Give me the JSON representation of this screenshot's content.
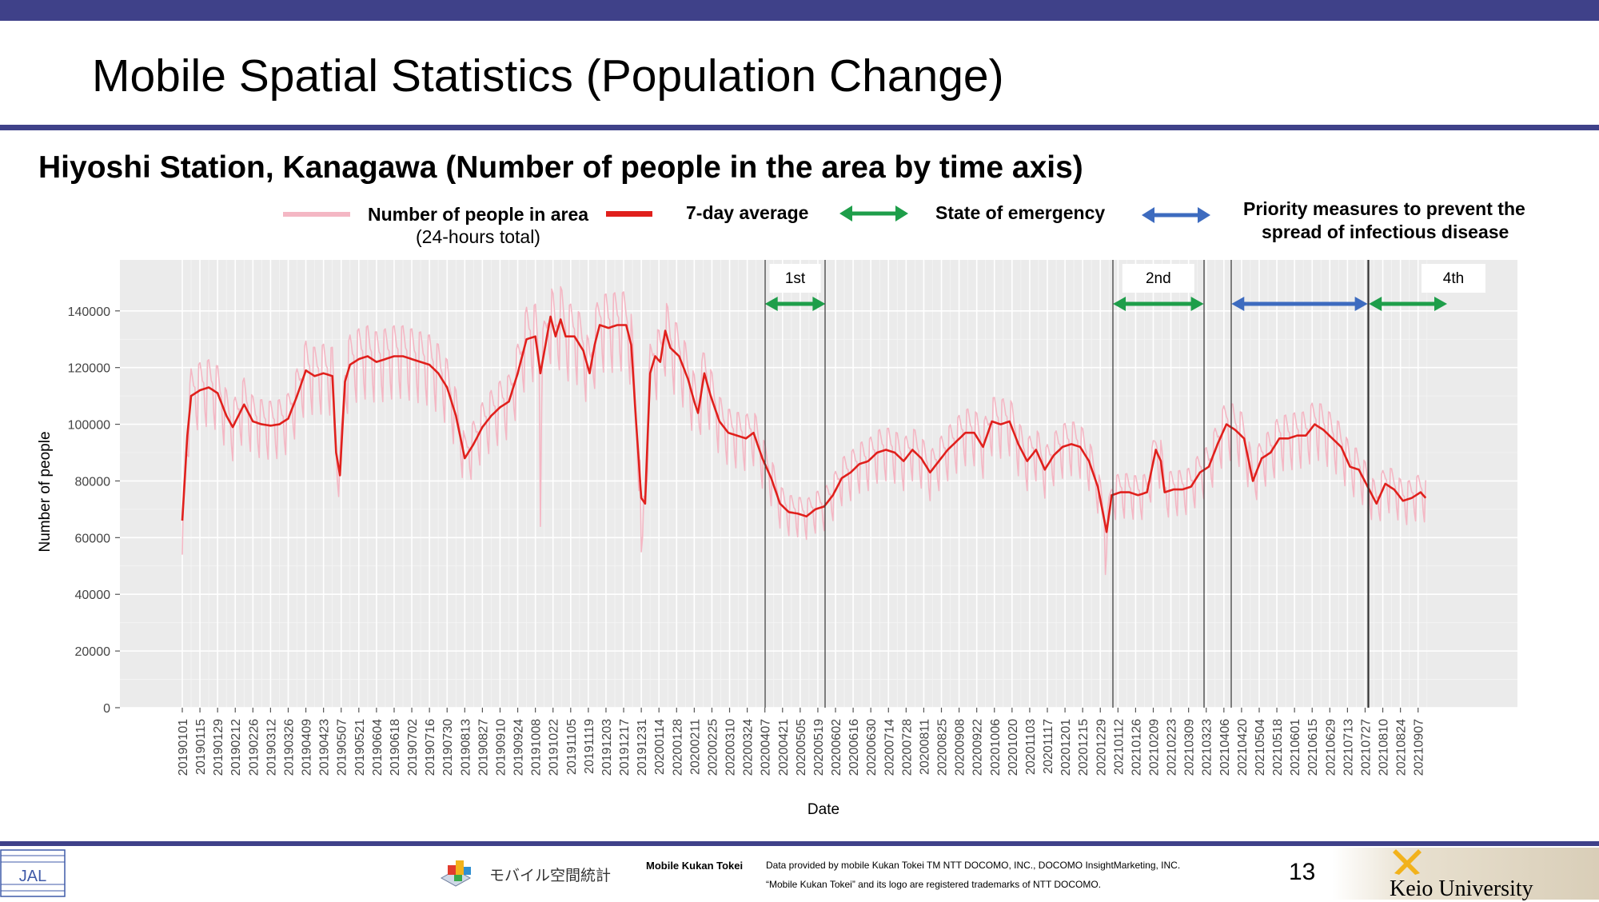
{
  "slide": {
    "title": "Mobile Spatial Statistics (Population Change)",
    "subtitle": "Hiyoshi Station, Kanagawa (Number of people in the area by time axis)",
    "page_number": "13"
  },
  "legend": {
    "daily_label": "Number of people in area",
    "daily_sublabel": "(24-hours total)",
    "daily_color": "#f4b7c4",
    "avg_label": "7-day average",
    "avg_color": "#e0201c",
    "emergency_label": "State of emergency",
    "emergency_color": "#1e9e4a",
    "priority_label_1": "Priority measures to prevent the",
    "priority_label_2": "spread of infectious disease",
    "priority_color": "#3d6bbf"
  },
  "footer": {
    "brand": "Mobile Kukan Tokei",
    "logo_text": "モバイル空間統計",
    "note1": "Data provided by mobile Kukan Tokei TM NTT DOCOMO, INC., DOCOMO InsightMarketing, INC.",
    "note2": "“Mobile Kukan Tokei” and its logo are registered trademarks of NTT DOCOMO.",
    "university": "Keio University"
  },
  "chart_data": {
    "type": "line",
    "title": "",
    "xlabel": "Date",
    "ylabel": "Number of people",
    "ylim": [
      0,
      158000
    ],
    "yticks": [
      0,
      20000,
      40000,
      60000,
      80000,
      100000,
      120000,
      140000
    ],
    "ytick_labels": [
      "0",
      "20000",
      "40000",
      "60000",
      "80000",
      "100000",
      "120000",
      "140000"
    ],
    "x_tick_labels": [
      "20190101",
      "20190115",
      "20190129",
      "20190212",
      "20190226",
      "20190312",
      "20190326",
      "20190409",
      "20190423",
      "20190507",
      "20190521",
      "20190604",
      "20190618",
      "20190702",
      "20190716",
      "20190730",
      "20190813",
      "20190827",
      "20190910",
      "20190924",
      "20191008",
      "20191022",
      "20191105",
      "20191119",
      "20191203",
      "20191217",
      "20191231",
      "20200114",
      "20200128",
      "20200211",
      "20200225",
      "20200310",
      "20200324",
      "20200407",
      "20200421",
      "20200505",
      "20200519",
      "20200602",
      "20200616",
      "20200630",
      "20200714",
      "20200728",
      "20200811",
      "20200825",
      "20200908",
      "20200922",
      "20201006",
      "20201020",
      "20201103",
      "20201117",
      "20201201",
      "20201215",
      "20201229",
      "20210112",
      "20210126",
      "20210209",
      "20210223",
      "20210309",
      "20210323",
      "20210406",
      "20210420",
      "20210504",
      "20210518",
      "20210601",
      "20210615",
      "20210629",
      "20210713",
      "20210727",
      "20210810",
      "20210824",
      "20210907"
    ],
    "x_start": "2019-01-01",
    "x_end": "2021-09-30",
    "grid": true,
    "series": [
      {
        "name": "7-day average",
        "points": [
          [
            "2019-01-01",
            66000
          ],
          [
            "2019-01-05",
            96000
          ],
          [
            "2019-01-08",
            110000
          ],
          [
            "2019-01-15",
            112000
          ],
          [
            "2019-01-22",
            113000
          ],
          [
            "2019-01-29",
            111000
          ],
          [
            "2019-02-05",
            103000
          ],
          [
            "2019-02-10",
            99000
          ],
          [
            "2019-02-19",
            107000
          ],
          [
            "2019-02-26",
            101000
          ],
          [
            "2019-03-05",
            100000
          ],
          [
            "2019-03-12",
            99500
          ],
          [
            "2019-03-19",
            100000
          ],
          [
            "2019-03-26",
            102000
          ],
          [
            "2019-04-02",
            110000
          ],
          [
            "2019-04-09",
            119000
          ],
          [
            "2019-04-16",
            117000
          ],
          [
            "2019-04-23",
            118000
          ],
          [
            "2019-04-30",
            117000
          ],
          [
            "2019-05-03",
            90000
          ],
          [
            "2019-05-06",
            82000
          ],
          [
            "2019-05-10",
            115000
          ],
          [
            "2019-05-14",
            121000
          ],
          [
            "2019-05-21",
            123000
          ],
          [
            "2019-05-28",
            124000
          ],
          [
            "2019-06-04",
            122000
          ],
          [
            "2019-06-11",
            123000
          ],
          [
            "2019-06-18",
            124000
          ],
          [
            "2019-06-25",
            124000
          ],
          [
            "2019-07-02",
            123000
          ],
          [
            "2019-07-09",
            122000
          ],
          [
            "2019-07-16",
            121000
          ],
          [
            "2019-07-23",
            118000
          ],
          [
            "2019-07-30",
            113000
          ],
          [
            "2019-08-06",
            103000
          ],
          [
            "2019-08-13",
            88000
          ],
          [
            "2019-08-20",
            93000
          ],
          [
            "2019-08-27",
            99000
          ],
          [
            "2019-09-03",
            103000
          ],
          [
            "2019-09-10",
            106000
          ],
          [
            "2019-09-17",
            108000
          ],
          [
            "2019-09-24",
            118000
          ],
          [
            "2019-10-01",
            130000
          ],
          [
            "2019-10-08",
            131000
          ],
          [
            "2019-10-12",
            118000
          ],
          [
            "2019-10-16",
            128000
          ],
          [
            "2019-10-20",
            138000
          ],
          [
            "2019-10-24",
            131000
          ],
          [
            "2019-10-28",
            137000
          ],
          [
            "2019-11-01",
            131000
          ],
          [
            "2019-11-08",
            131000
          ],
          [
            "2019-11-15",
            126000
          ],
          [
            "2019-11-20",
            118000
          ],
          [
            "2019-11-24",
            128000
          ],
          [
            "2019-11-28",
            135000
          ],
          [
            "2019-12-05",
            134000
          ],
          [
            "2019-12-12",
            135000
          ],
          [
            "2019-12-19",
            135000
          ],
          [
            "2019-12-23",
            128000
          ],
          [
            "2019-12-27",
            100000
          ],
          [
            "2019-12-31",
            74000
          ],
          [
            "2020-01-03",
            72000
          ],
          [
            "2020-01-07",
            118000
          ],
          [
            "2020-01-11",
            124000
          ],
          [
            "2020-01-15",
            122000
          ],
          [
            "2020-01-19",
            133000
          ],
          [
            "2020-01-23",
            127000
          ],
          [
            "2020-01-30",
            124000
          ],
          [
            "2020-02-06",
            116000
          ],
          [
            "2020-02-11",
            108000
          ],
          [
            "2020-02-14",
            104000
          ],
          [
            "2020-02-19",
            118000
          ],
          [
            "2020-02-24",
            110000
          ],
          [
            "2020-03-02",
            101000
          ],
          [
            "2020-03-09",
            97000
          ],
          [
            "2020-03-16",
            96000
          ],
          [
            "2020-03-23",
            95000
          ],
          [
            "2020-03-29",
            97000
          ],
          [
            "2020-04-05",
            88000
          ],
          [
            "2020-04-12",
            81000
          ],
          [
            "2020-04-19",
            72000
          ],
          [
            "2020-04-26",
            69000
          ],
          [
            "2020-05-03",
            68500
          ],
          [
            "2020-05-10",
            67500
          ],
          [
            "2020-05-17",
            70000
          ],
          [
            "2020-05-24",
            71000
          ],
          [
            "2020-05-31",
            75000
          ],
          [
            "2020-06-07",
            81000
          ],
          [
            "2020-06-14",
            83000
          ],
          [
            "2020-06-21",
            86000
          ],
          [
            "2020-06-28",
            87000
          ],
          [
            "2020-07-05",
            90000
          ],
          [
            "2020-07-12",
            91000
          ],
          [
            "2020-07-19",
            90000
          ],
          [
            "2020-07-26",
            87000
          ],
          [
            "2020-08-02",
            91000
          ],
          [
            "2020-08-09",
            88000
          ],
          [
            "2020-08-16",
            83000
          ],
          [
            "2020-08-23",
            87000
          ],
          [
            "2020-08-30",
            91000
          ],
          [
            "2020-09-06",
            94000
          ],
          [
            "2020-09-13",
            97000
          ],
          [
            "2020-09-20",
            97000
          ],
          [
            "2020-09-27",
            92000
          ],
          [
            "2020-10-04",
            101000
          ],
          [
            "2020-10-11",
            100000
          ],
          [
            "2020-10-18",
            101000
          ],
          [
            "2020-10-25",
            93000
          ],
          [
            "2020-11-01",
            87000
          ],
          [
            "2020-11-08",
            91000
          ],
          [
            "2020-11-15",
            84000
          ],
          [
            "2020-11-22",
            89000
          ],
          [
            "2020-11-29",
            92000
          ],
          [
            "2020-12-06",
            93000
          ],
          [
            "2020-12-13",
            92000
          ],
          [
            "2020-12-20",
            87000
          ],
          [
            "2020-12-27",
            78000
          ],
          [
            "2021-01-03",
            62000
          ],
          [
            "2021-01-07",
            75000
          ],
          [
            "2021-01-14",
            76000
          ],
          [
            "2021-01-21",
            76000
          ],
          [
            "2021-01-28",
            75000
          ],
          [
            "2021-02-04",
            76000
          ],
          [
            "2021-02-11",
            91000
          ],
          [
            "2021-02-15",
            87000
          ],
          [
            "2021-02-18",
            76000
          ],
          [
            "2021-02-25",
            77000
          ],
          [
            "2021-03-04",
            77000
          ],
          [
            "2021-03-11",
            78000
          ],
          [
            "2021-03-18",
            83000
          ],
          [
            "2021-03-25",
            85000
          ],
          [
            "2021-04-01",
            93000
          ],
          [
            "2021-04-08",
            100000
          ],
          [
            "2021-04-15",
            98000
          ],
          [
            "2021-04-22",
            95000
          ],
          [
            "2021-04-29",
            80000
          ],
          [
            "2021-05-06",
            88000
          ],
          [
            "2021-05-13",
            90000
          ],
          [
            "2021-05-20",
            95000
          ],
          [
            "2021-05-27",
            95000
          ],
          [
            "2021-06-03",
            96000
          ],
          [
            "2021-06-10",
            96000
          ],
          [
            "2021-06-17",
            100000
          ],
          [
            "2021-06-24",
            98000
          ],
          [
            "2021-07-01",
            95000
          ],
          [
            "2021-07-08",
            92000
          ],
          [
            "2021-07-15",
            85000
          ],
          [
            "2021-07-22",
            84000
          ],
          [
            "2021-07-29",
            78000
          ],
          [
            "2021-08-05",
            72000
          ],
          [
            "2021-08-12",
            79000
          ],
          [
            "2021-08-19",
            77000
          ],
          [
            "2021-08-26",
            73000
          ],
          [
            "2021-09-02",
            74000
          ],
          [
            "2021-09-09",
            76000
          ],
          [
            "2021-09-13",
            74000
          ]
        ]
      },
      {
        "name": "Number of people in area",
        "weekend_dip": 0.12,
        "weekday_peak": 0.09,
        "outliers": [
          [
            "2019-01-01",
            54000
          ],
          [
            "2019-05-04",
            80000
          ],
          [
            "2019-10-12",
            64000
          ],
          [
            "2019-12-31",
            55000
          ],
          [
            "2020-01-01",
            60000
          ],
          [
            "2021-01-02",
            47000
          ]
        ]
      }
    ],
    "periods": [
      {
        "label": "1st",
        "start": "2020-04-07",
        "end": "2020-05-25",
        "color": "#1e9e4a"
      },
      {
        "label": "2nd",
        "start": "2021-01-08",
        "end": "2021-03-21",
        "color": "#1e9e4a"
      },
      {
        "label": "",
        "start": "2021-04-12",
        "end": "2021-07-29",
        "color": "#3d6bbf"
      },
      {
        "label": "4th",
        "start": "2021-07-30",
        "end": "2021-09-30",
        "color": "#1e9e4a"
      }
    ]
  }
}
